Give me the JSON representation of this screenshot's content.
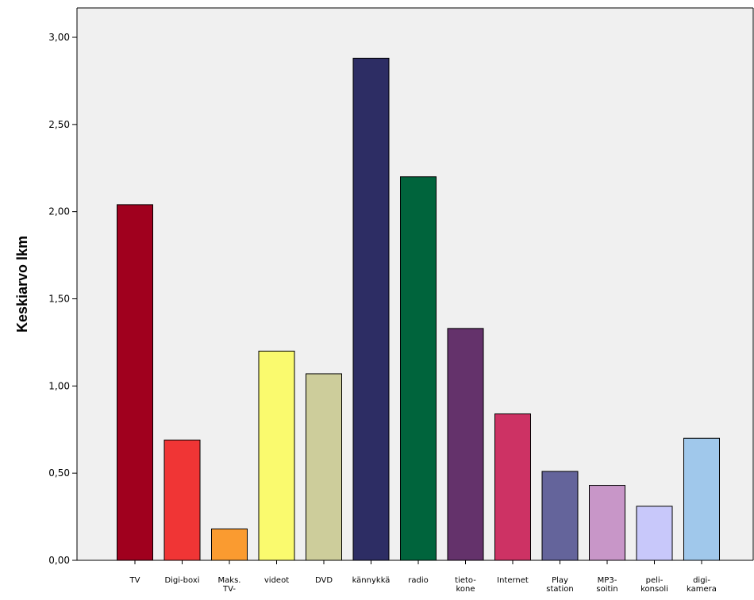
{
  "chart_data": {
    "type": "bar",
    "title": "",
    "xlabel": "",
    "ylabel": "Keskiarvo lkm",
    "ylim": [
      0,
      3.2
    ],
    "yticks": [
      "0,00",
      "0,50",
      "1,00",
      "1,50",
      "2,00",
      "2,50",
      "3,00"
    ],
    "ytick_values": [
      0,
      0.5,
      1,
      1.5,
      2,
      2.5,
      3
    ],
    "grid": false,
    "background": "#F0F0F0",
    "categories": [
      [
        "TV"
      ],
      [
        "Digi-boxi"
      ],
      [
        "Maks.",
        "TV-"
      ],
      [
        "videot"
      ],
      [
        "DVD"
      ],
      [
        "kännykkä"
      ],
      [
        "radio"
      ],
      [
        "tieto-",
        "kone"
      ],
      [
        "Internet"
      ],
      [
        "Play",
        "station"
      ],
      [
        "MP3-",
        "soitin"
      ],
      [
        "peli-",
        "konsoli"
      ],
      [
        "digi-",
        "kamera"
      ]
    ],
    "values": [
      2.04,
      0.69,
      0.18,
      1.2,
      1.07,
      2.88,
      2.2,
      1.33,
      0.84,
      0.51,
      0.43,
      0.31,
      0.7
    ],
    "colors": [
      "#A0001E",
      "#F03535",
      "#FA9B30",
      "#FAFA6E",
      "#CDCD9B",
      "#2D2D64",
      "#00643C",
      "#64326B",
      "#CD3264",
      "#64649B",
      "#C896C8",
      "#C8C8FA",
      "#A0C8EB"
    ]
  }
}
